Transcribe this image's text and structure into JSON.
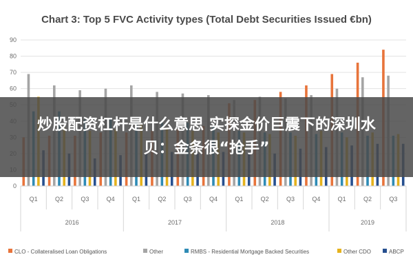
{
  "chart_data": {
    "type": "bar",
    "title": "Chart 3: Top 5 FVC Activity types (Total Debt Securities Issued €bn)",
    "xlabel": "",
    "ylabel": "",
    "ylim": [
      0,
      90
    ],
    "yticks": [
      0,
      10,
      20,
      30,
      40,
      50,
      60,
      70,
      80,
      90
    ],
    "grid": true,
    "legend_position": "bottom",
    "categories": [
      "Q1",
      "Q2",
      "Q3",
      "Q4",
      "Q1",
      "Q2",
      "Q3",
      "Q4",
      "Q1",
      "Q2",
      "Q3",
      "Q4",
      "Q1",
      "Q2",
      "Q3"
    ],
    "groups": [
      {
        "label": "2016",
        "span": 4
      },
      {
        "label": "2017",
        "span": 4
      },
      {
        "label": "2018",
        "span": 4
      },
      {
        "label": "2019",
        "span": 3
      }
    ],
    "series": [
      {
        "name": "CLO - Collateralised Loan Obligations",
        "color": "#e8743b",
        "values": [
          30,
          31,
          31,
          33,
          33,
          34,
          35,
          37,
          51,
          53,
          58,
          62,
          69,
          76,
          84
        ]
      },
      {
        "name": "Other",
        "color": "#a5a5a5",
        "values": [
          69,
          62,
          59,
          60,
          62,
          58,
          57,
          56,
          53,
          55,
          54,
          56,
          60,
          67,
          68
        ]
      },
      {
        "name": "RMBS - Residential Mortgage Backed Securities",
        "color": "#2e8bb5",
        "values": [
          46,
          46,
          41,
          41,
          40,
          39,
          39,
          37,
          34,
          33,
          33,
          32,
          33,
          31,
          31
        ]
      },
      {
        "name": "Other CDO",
        "color": "#e5b21d",
        "values": [
          55,
          36,
          34,
          35,
          38,
          36,
          34,
          33,
          33,
          32,
          31,
          34,
          30,
          33,
          32
        ]
      },
      {
        "name": "ABCP",
        "color": "#264f8f",
        "values": [
          22,
          20,
          17,
          19,
          20,
          21,
          20,
          21,
          21,
          20,
          23,
          24,
          25,
          26,
          26
        ]
      }
    ]
  },
  "overlay": {
    "line1": "炒股配资杠杆是什么意思 实探金价巨震下的深圳水",
    "line2": "贝：金条很“抢手”"
  }
}
